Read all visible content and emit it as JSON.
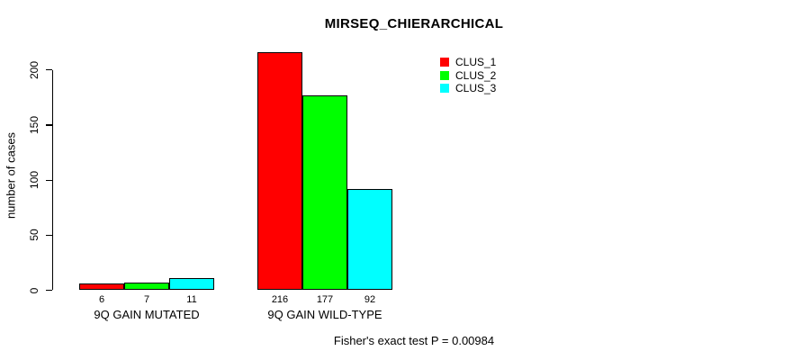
{
  "chart_data": {
    "type": "bar",
    "title": "MIRSEQ_CHIERARCHICAL",
    "xlabel": "",
    "ylabel": "number of cases",
    "ylim": [
      0,
      220
    ],
    "yticks": [
      0,
      50,
      100,
      150,
      200
    ],
    "categories": [
      "9Q GAIN MUTATED",
      "9Q GAIN WILD-TYPE"
    ],
    "series": [
      {
        "name": "CLUS_1",
        "color": "#ff0000",
        "values": [
          6,
          216
        ]
      },
      {
        "name": "CLUS_2",
        "color": "#00ff00",
        "values": [
          7,
          177
        ]
      },
      {
        "name": "CLUS_3",
        "color": "#00ffff",
        "values": [
          11,
          92
        ]
      }
    ],
    "bar_value_labels": [
      [
        "6",
        "7",
        "11"
      ],
      [
        "216",
        "177",
        "92"
      ]
    ],
    "legend_position": "top-right",
    "grid": false,
    "background": "#ffffff",
    "axis_color": "#000000",
    "annotation": "Fisher's exact test P = 0.00984"
  }
}
